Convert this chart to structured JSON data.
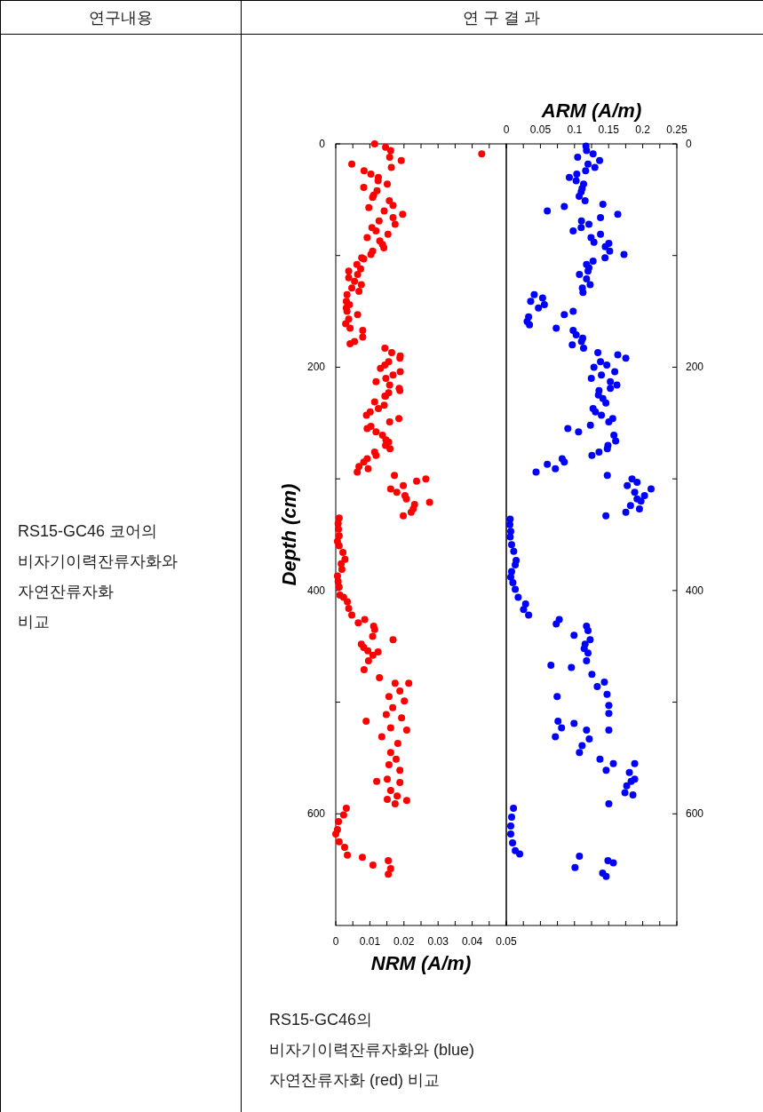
{
  "chart_data": [
    {
      "type": "scatter",
      "xlabel": "NRM (A/m)",
      "ylabel": "Depth (cm)",
      "xlim": [
        0,
        0.05
      ],
      "xticks": [
        0,
        {
          "value": 0.005,
          "label": null
        },
        0.01,
        {
          "value": 0.015,
          "label": null
        },
        0.02,
        {
          "value": 0.025,
          "label": null
        },
        0.03,
        {
          "value": 0.035,
          "label": null
        },
        0.04,
        {
          "value": 0.045,
          "label": null
        },
        0.05
      ],
      "ylim": [
        700,
        0
      ],
      "yticks": [
        0,
        {
          "value": 100,
          "label": null
        },
        200,
        {
          "value": 300,
          "label": null
        },
        400,
        {
          "value": 500,
          "label": null
        },
        600
      ],
      "marker": "circle",
      "annotations": [
        "연구내용",
        "연 구 결 과",
        "RS15-GC46 코어의\n비자기이력잔류자화와\n자연잔류자화\n비교",
        "RS15-GC46의\n비자기이력잔류자화와 (blue)\n자연잔류자화 (red) 비교"
      ],
      "series": [
        {
          "color": "#ff0000",
          "x": [
            0.0114,
            0.0146,
            0.0161,
            0.0428,
            0.0158,
            0.0192,
            0.0047,
            0.0163,
            0.0083,
            0.0103,
            0.0125,
            0.0124,
            0.0151,
            0.0082,
            0.0121,
            0.0111,
            0.0108,
            0.0157,
            0.0168,
            0.0097,
            0.0142,
            0.0196,
            0.0168,
            0.0127,
            0.0174,
            0.0106,
            0.0118,
            0.0153,
            0.0092,
            0.0129,
            0.0137,
            0.0141,
            0.0108,
            0.0103,
            0.0082,
            0.0076,
            0.0062,
            0.0073,
            0.0038,
            0.0064,
            0.0038,
            0.0055,
            0.0075,
            0.0047,
            0.0068,
            0.0033,
            0.0031,
            0.004,
            0.0031,
            0.0033,
            0.0064,
            0.0038,
            0.0029,
            0.0042,
            0.0079,
            0.0079,
            0.0055,
            0.0042,
            0.0144,
            0.0164,
            0.0189,
            0.0188,
            0.0155,
            0.0144,
            0.0131,
            0.0189,
            0.0168,
            0.0147,
            0.0118,
            0.0158,
            0.0186,
            0.0155,
            0.0146,
            0.0188,
            0.0144,
            0.0114,
            0.0142,
            0.0125,
            0.0101,
            0.009,
            0.0158,
            0.0185,
            0.0103,
            0.0092,
            0.0118,
            0.0137,
            0.0147,
            0.0155,
            0.0146,
            0.0159,
            0.0114,
            0.0118,
            0.0092,
            0.0082,
            0.0068,
            0.0095,
            0.0063,
            0.0172,
            0.0237,
            0.0264,
            0.0198,
            0.0161,
            0.0179,
            0.0203,
            0.0207,
            0.0275,
            0.0231,
            0.0227,
            0.0221,
            0.0198,
            0.001,
            0.0007,
            0.0008,
            0.001,
            0.0005,
            0.001,
            0.0021,
            0.0027,
            0.0016,
            0.0018,
            0.0005,
            0.0007,
            0.001,
            0.0012,
            0.0023,
            0.0034,
            0.0038,
            0.0047,
            0.0066,
            0.0085,
            0.0111,
            0.0114,
            0.0108,
            0.0168,
            0.0075,
            0.0082,
            0.0094,
            0.0109,
            0.0124,
            0.0096,
            0.0083,
            0.0128,
            0.0174,
            0.0214,
            0.0188,
            0.0156,
            0.0201,
            0.0167,
            0.0148,
            0.0193,
            0.0089,
            0.0161,
            0.0135,
            0.0208,
            0.0182,
            0.0161,
            0.0177,
            0.0156,
            0.0188,
            0.0151,
            0.012,
            0.0188,
            0.0161,
            0.018,
            0.0151,
            0.0208,
            0.0174,
            0.0031,
            0.0023,
            0.0008,
            0.0005,
            0,
            0.001,
            0.0026,
            0.0034,
            0.0078,
            0.0109,
            0.0154,
            0.0161,
            0.0154
          ],
          "values": [
            0,
            3,
            6,
            9,
            12,
            15,
            18,
            21,
            24,
            27,
            30,
            33,
            36,
            39,
            42,
            46,
            48,
            51,
            55,
            57,
            60,
            63,
            66,
            69,
            72,
            75,
            78,
            81,
            84,
            87,
            90,
            93,
            96,
            99,
            103,
            102,
            108,
            112,
            114,
            117,
            120,
            123,
            126,
            129,
            132,
            135,
            141,
            144,
            147,
            150,
            153,
            157,
            161,
            165,
            167,
            173,
            177,
            179,
            183,
            187,
            190,
            192,
            195,
            198,
            201,
            204,
            207,
            210,
            213,
            216,
            219,
            223,
            226,
            221,
            226,
            231,
            234,
            237,
            240,
            243,
            249,
            246,
            253,
            255,
            258,
            261,
            265,
            267,
            270,
            273,
            276,
            279,
            282,
            285,
            289,
            291,
            294,
            297,
            302,
            300,
            306,
            309,
            312,
            315,
            318,
            321,
            323,
            327,
            330,
            333,
            335,
            340,
            345,
            351,
            356,
            360,
            366,
            372,
            376,
            381,
            387,
            392,
            397,
            404,
            406,
            410,
            416,
            422,
            429,
            426,
            432,
            435,
            441,
            444,
            448,
            451,
            454,
            458,
            455,
            463,
            471,
            478,
            483,
            483,
            490,
            495,
            499,
            505,
            511,
            514,
            517,
            523,
            531,
            525,
            537,
            545,
            551,
            556,
            561,
            569,
            571,
            572,
            579,
            584,
            587,
            588,
            591,
            595,
            601,
            607,
            614,
            618,
            625,
            630,
            637,
            639,
            646,
            642,
            649,
            654
          ]
        }
      ]
    },
    {
      "type": "scatter",
      "xlabel": "ARM (A/m)",
      "xlim": [
        0,
        0.25
      ],
      "xticks": [
        0,
        {
          "value": 0.025,
          "label": null
        },
        0.05,
        {
          "value": 0.075,
          "label": null
        },
        0.1,
        {
          "value": 0.125,
          "label": null
        },
        0.15,
        {
          "value": 0.175,
          "label": null
        },
        0.2,
        {
          "value": 0.225,
          "label": null
        },
        0.25
      ],
      "ylim": [
        700,
        0
      ],
      "yticks": [
        0,
        {
          "value": 100,
          "label": null
        },
        200,
        {
          "value": 300,
          "label": null
        },
        400,
        {
          "value": 500,
          "label": null
        },
        600
      ],
      "marker": "circle",
      "series": [
        {
          "color": "#0000ff",
          "x": [
            0.1168,
            0.1176,
            0.1272,
            0.1046,
            0.1368,
            0.1198,
            0.1298,
            0.1163,
            0.1033,
            0.0924,
            0.1024,
            0.1133,
            0.1111,
            0.1098,
            0.1068,
            0.1155,
            0.1416,
            0.085,
            0.0601,
            0.1634,
            0.1381,
            0.1102,
            0.1211,
            0.1098,
            0.098,
            0.1381,
            0.1242,
            0.1285,
            0.1503,
            0.1451,
            0.1516,
            0.1725,
            0.1447,
            0.1272,
            0.1176,
            0.1211,
            0.1198,
            0.1072,
            0.1176,
            0.1229,
            0.1115,
            0.1124,
            0.0409,
            0.0532,
            0.0357,
            0.0558,
            0.0471,
            0.098,
            0.085,
            0.0327,
            0.0305,
            0.034,
            0.0732,
            0.098,
            0.1024,
            0.112,
            0.1102,
            0.0967,
            0.1133,
            0.1342,
            0.1634,
            0.1752,
            0.1381,
            0.1473,
            0.1285,
            0.159,
            0.1394,
            0.1246,
            0.1525,
            0.1621,
            0.1525,
            0.1359,
            0.135,
            0.1416,
            0.146,
            0.1272,
            0.1307,
            0.1394,
            0.156,
            0.1503,
            0.0902,
            0.1059,
            0.1233,
            0.1577,
            0.1603,
            0.149,
            0.1481,
            0.1359,
            0.1255,
            0.0819,
            0.085,
            0.0601,
            0.0719,
            0.0436,
            0.1481,
            0.1843,
            0.1917,
            0.1773,
            0.2122,
            0.1882,
            0.2026,
            0.1917,
            0.1974,
            0.1821,
            0.1952,
            0.1752,
            0.146,
            0.0057,
            0.0052,
            0.0065,
            0.0057,
            0.0078,
            0.0109,
            0.0144,
            0.0131,
            0.0078,
            0.0065,
            0.0096,
            0.0131,
            0.0174,
            0.0283,
            0.0253,
            0.0327,
            0.0732,
            0.0776,
            0.0993,
            0.1176,
            0.1198,
            0.1229,
            0.1155,
            0.1142,
            0.1198,
            0.1176,
            0.0654,
            0.0954,
            0.1255,
            0.1438,
            0.1333,
            0.1477,
            0.1503,
            0.1503,
            0.0745,
            0.0758,
            0.081,
            0.0993,
            0.0719,
            0.1176,
            0.1503,
            0.1216,
            0.1111,
            0.1072,
            0.1373,
            0.1569,
            0.1464,
            0.1882,
            0.1804,
            0.183,
            0.1882,
            0.1765,
            0.1739,
            0.1856,
            0.1503,
            0.0105,
            0.0078,
            0.0065,
            0.0065,
            0.0092,
            0.0131,
            0.0196,
            0.1072,
            0.149,
            0.1569,
            0.1007,
            0.1412,
            0.1464
          ],
          "values": [
            2,
            6,
            9,
            12,
            15,
            18,
            21,
            24,
            27,
            30,
            33,
            36,
            40,
            43,
            47,
            51,
            54,
            56,
            60,
            63,
            66,
            69,
            72,
            75,
            78,
            81,
            84,
            88,
            89,
            92,
            96,
            99,
            102,
            105,
            108,
            111,
            114,
            117,
            121,
            126,
            129,
            133,
            135,
            138,
            141,
            144,
            147,
            150,
            153,
            155,
            159,
            162,
            165,
            167,
            171,
            174,
            177,
            180,
            183,
            187,
            189,
            192,
            195,
            198,
            200,
            204,
            207,
            210,
            213,
            216,
            219,
            221,
            225,
            228,
            232,
            237,
            240,
            243,
            246,
            249,
            255,
            258,
            252,
            261,
            266,
            270,
            273,
            276,
            279,
            282,
            285,
            287,
            291,
            294,
            297,
            300,
            303,
            306,
            309,
            312,
            315,
            318,
            320,
            324,
            327,
            330,
            333,
            336,
            341,
            347,
            352,
            359,
            365,
            373,
            377,
            383,
            388,
            393,
            399,
            406,
            412,
            417,
            422,
            430,
            426,
            440,
            432,
            436,
            444,
            448,
            452,
            456,
            463,
            467,
            469,
            475,
            482,
            486,
            493,
            503,
            510,
            495,
            517,
            523,
            519,
            531,
            525,
            525,
            533,
            539,
            545,
            551,
            555,
            561,
            555,
            563,
            571,
            569,
            575,
            581,
            583,
            591,
            595,
            603,
            611,
            618,
            626,
            633,
            636,
            638,
            642,
            644,
            648,
            653,
            656
          ]
        }
      ]
    }
  ]
}
